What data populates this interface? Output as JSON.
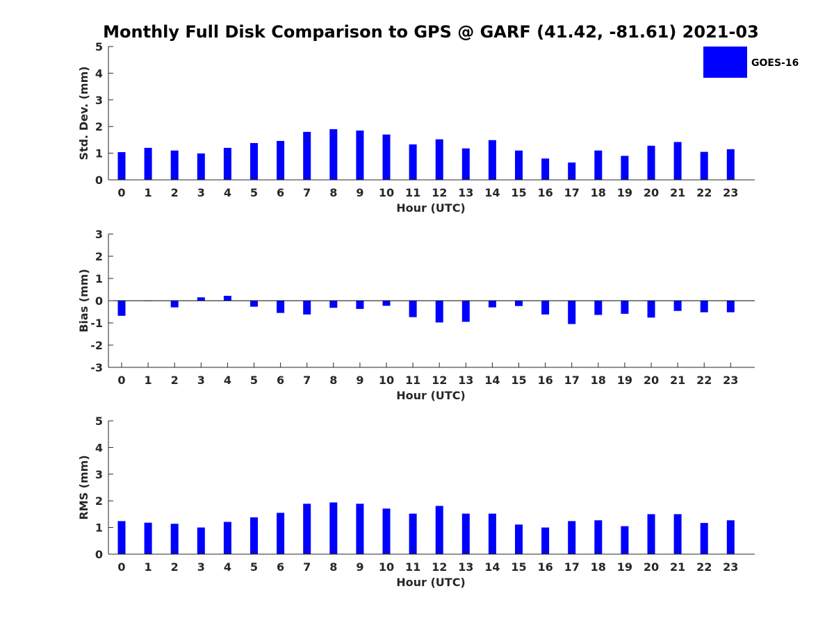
{
  "chart_data": [
    {
      "type": "bar",
      "title": "Monthly Full Disk Comparison to GPS @ GARF (41.42, -81.61) 2021-03",
      "xlabel": "Hour (UTC)",
      "ylabel": "Std. Dev. (mm)",
      "ylim": [
        0,
        5
      ],
      "yticks": [
        "0",
        "1",
        "2",
        "3",
        "4",
        "5"
      ],
      "categories": [
        "0",
        "1",
        "2",
        "3",
        "4",
        "5",
        "6",
        "7",
        "8",
        "9",
        "10",
        "11",
        "12",
        "13",
        "14",
        "15",
        "16",
        "17",
        "18",
        "19",
        "20",
        "21",
        "22",
        "23"
      ],
      "series": [
        {
          "name": "GOES-16",
          "color": "#0000ff",
          "values": [
            1.04,
            1.2,
            1.1,
            0.99,
            1.2,
            1.38,
            1.46,
            1.8,
            1.9,
            1.85,
            1.7,
            1.33,
            1.52,
            1.18,
            1.49,
            1.1,
            0.8,
            0.65,
            1.1,
            0.9,
            1.28,
            1.42,
            1.05,
            1.15
          ]
        }
      ],
      "legend": {
        "position": "top-right",
        "entries": [
          "GOES-16"
        ]
      },
      "grid": false
    },
    {
      "type": "bar",
      "xlabel": "Hour (UTC)",
      "ylabel": "Bias (mm)",
      "ylim": [
        -3,
        3
      ],
      "yticks": [
        "-3",
        "-2",
        "-1",
        "0",
        "1",
        "2",
        "3"
      ],
      "categories": [
        "0",
        "1",
        "2",
        "3",
        "4",
        "5",
        "6",
        "7",
        "8",
        "9",
        "10",
        "11",
        "12",
        "13",
        "14",
        "15",
        "16",
        "17",
        "18",
        "19",
        "20",
        "21",
        "22",
        "23"
      ],
      "series": [
        {
          "color": "#0000ff",
          "values": [
            -0.68,
            -0.02,
            -0.3,
            0.15,
            0.22,
            -0.27,
            -0.55,
            -0.62,
            -0.32,
            -0.37,
            -0.23,
            -0.74,
            -0.98,
            -0.95,
            -0.3,
            -0.24,
            -0.62,
            -1.05,
            -0.64,
            -0.59,
            -0.76,
            -0.46,
            -0.52,
            -0.52
          ]
        }
      ],
      "grid": false
    },
    {
      "type": "bar",
      "xlabel": "Hour (UTC)",
      "ylabel": "RMS (mm)",
      "ylim": [
        0,
        5
      ],
      "yticks": [
        "0",
        "1",
        "2",
        "3",
        "4",
        "5"
      ],
      "categories": [
        "0",
        "1",
        "2",
        "3",
        "4",
        "5",
        "6",
        "7",
        "8",
        "9",
        "10",
        "11",
        "12",
        "13",
        "14",
        "15",
        "16",
        "17",
        "18",
        "19",
        "20",
        "21",
        "22",
        "23"
      ],
      "series": [
        {
          "color": "#0000ff",
          "values": [
            1.24,
            1.18,
            1.14,
            1.0,
            1.21,
            1.38,
            1.55,
            1.89,
            1.94,
            1.89,
            1.71,
            1.52,
            1.81,
            1.52,
            1.52,
            1.11,
            1.0,
            1.24,
            1.27,
            1.05,
            1.5,
            1.5,
            1.17,
            1.27
          ]
        }
      ],
      "grid": false
    }
  ]
}
